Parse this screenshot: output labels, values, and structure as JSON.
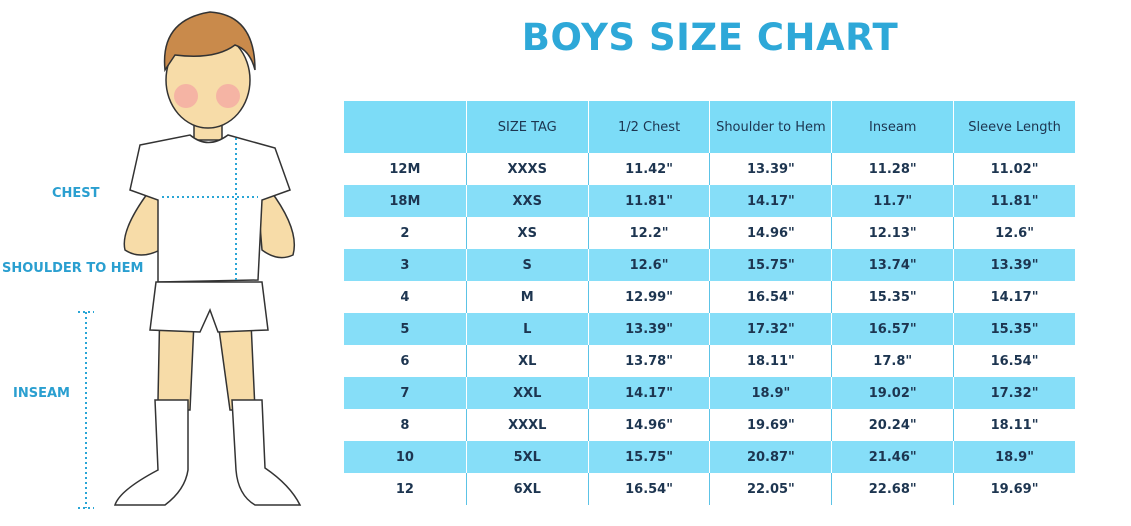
{
  "title": "BOYS SIZE CHART",
  "figure_labels": {
    "chest": "CHEST",
    "shoulder_to_hem": "SHOULDER TO HEM",
    "inseam": "INSEAM"
  },
  "table": {
    "headers": [
      "SIZE TAG",
      "1/2 Chest",
      "Shoulder to Hem",
      "Inseam",
      "Sleeve Length"
    ],
    "rows": [
      [
        "12M",
        "XXXS",
        "11.42\"",
        "13.39\"",
        "11.28\"",
        "11.02\""
      ],
      [
        "18M",
        "XXS",
        "11.81\"",
        "14.17\"",
        "11.7\"",
        "11.81\""
      ],
      [
        "2",
        "XS",
        "12.2\"",
        "14.96\"",
        "12.13\"",
        "12.6\""
      ],
      [
        "3",
        "S",
        "12.6\"",
        "15.75\"",
        "13.74\"",
        "13.39\""
      ],
      [
        "4",
        "M",
        "12.99\"",
        "16.54\"",
        "15.35\"",
        "14.17\""
      ],
      [
        "5",
        "L",
        "13.39\"",
        "17.32\"",
        "16.57\"",
        "15.35\""
      ],
      [
        "6",
        "XL",
        "13.78\"",
        "18.11\"",
        "17.8\"",
        "16.54\""
      ],
      [
        "7",
        "XXL",
        "14.17\"",
        "18.9\"",
        "19.02\"",
        "17.32\""
      ],
      [
        "8",
        "XXXL",
        "14.96\"",
        "19.69\"",
        "20.24\"",
        "18.11\""
      ],
      [
        "10",
        "5XL",
        "15.75\"",
        "20.87\"",
        "21.46\"",
        "18.9\""
      ],
      [
        "12",
        "6XL",
        "16.54\"",
        "22.05\"",
        "22.68\"",
        "19.69\""
      ]
    ]
  }
}
